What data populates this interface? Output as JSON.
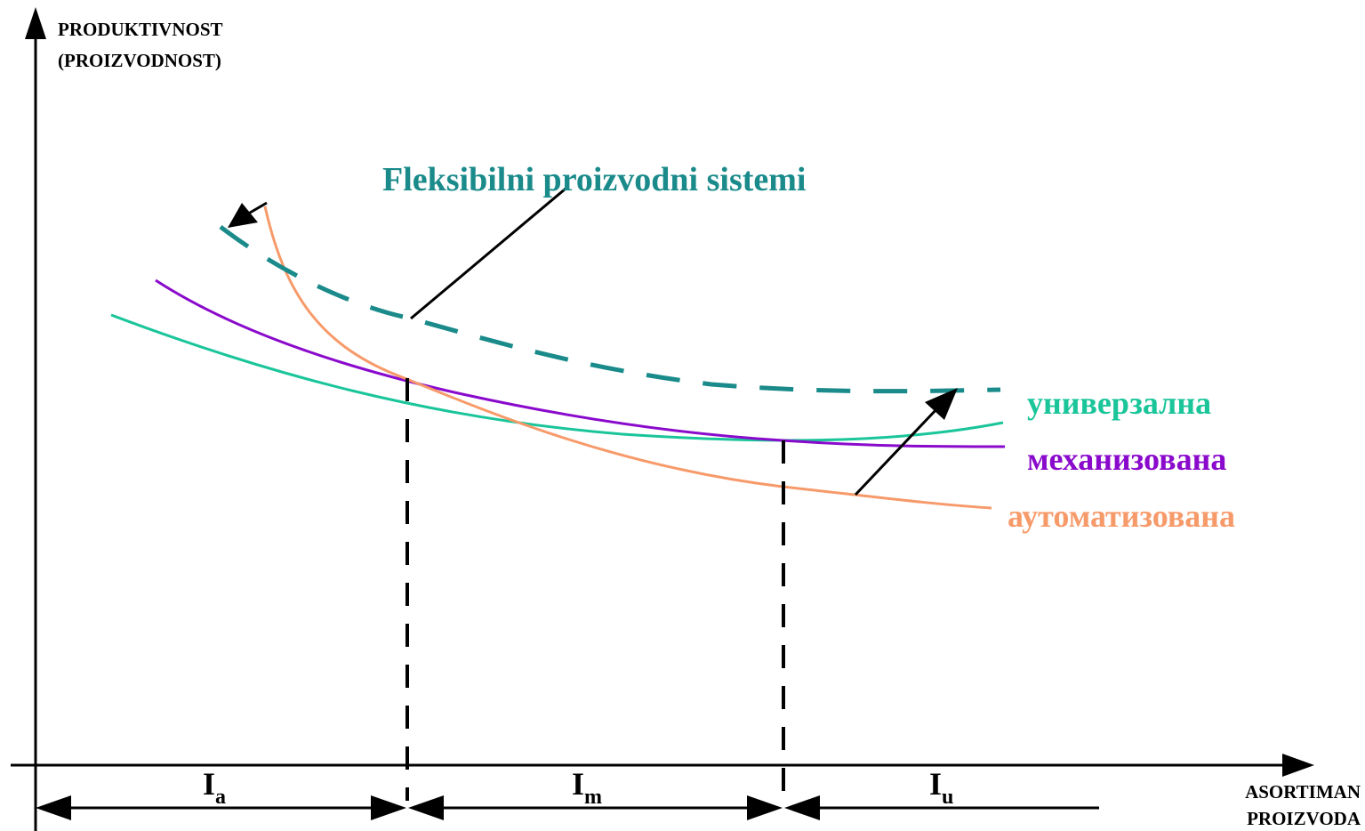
{
  "y_axis": {
    "label_line1": "PRODUKTIVNOST",
    "label_line2": "(PROIZVODNOST)"
  },
  "x_axis": {
    "label_line1": "ASORTIMAN",
    "label_line2": "PROIZVODA"
  },
  "title": "Fleksibilni proizvodni sistemi",
  "curves": {
    "fps": {
      "color": "#1a8a8a"
    },
    "univerzalna": {
      "label": "универзална",
      "color": "#1ac59a"
    },
    "mehanizovana": {
      "label": "механизована",
      "color": "#8a0acc"
    },
    "automatizovana": {
      "label": "аутоматизована",
      "color": "#f79a6a"
    }
  },
  "intervals": [
    {
      "main": "I",
      "sub": "a"
    },
    {
      "main": "I",
      "sub": "m"
    },
    {
      "main": "I",
      "sub": "u"
    }
  ]
}
